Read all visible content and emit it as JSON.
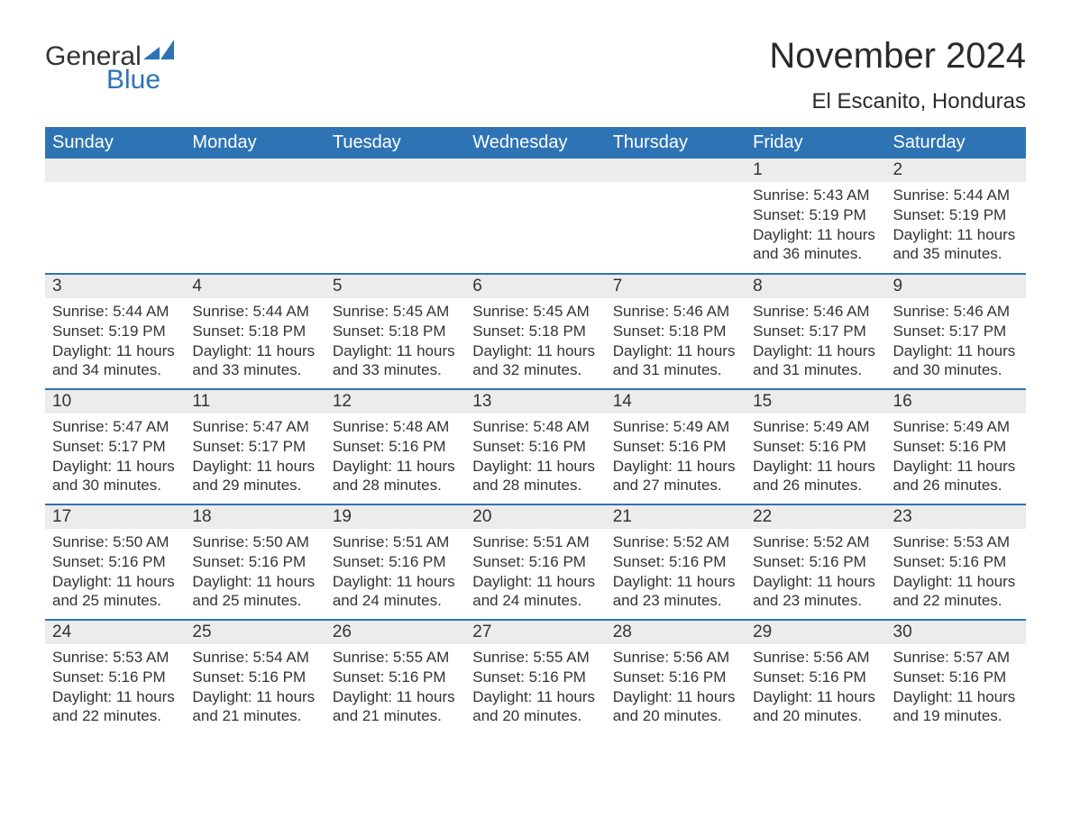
{
  "brand": {
    "part1": "General",
    "part2": "Blue",
    "accent_color": "#2e74b5"
  },
  "title": "November 2024",
  "location": "El Escanito, Honduras",
  "colors": {
    "header_bg": "#2e74b5",
    "header_text": "#ffffff",
    "daynum_bg": "#ececec",
    "row_border": "#2e74b5",
    "text": "#333333",
    "page_bg": "#ffffff"
  },
  "typography": {
    "title_fontsize": 40,
    "location_fontsize": 24,
    "header_fontsize": 20,
    "daynum_fontsize": 19,
    "body_fontsize": 17
  },
  "weekdays": [
    "Sunday",
    "Monday",
    "Tuesday",
    "Wednesday",
    "Thursday",
    "Friday",
    "Saturday"
  ],
  "weeks": [
    [
      null,
      null,
      null,
      null,
      null,
      {
        "n": "1",
        "sunrise": "Sunrise: 5:43 AM",
        "sunset": "Sunset: 5:19 PM",
        "day1": "Daylight: 11 hours",
        "day2": "and 36 minutes."
      },
      {
        "n": "2",
        "sunrise": "Sunrise: 5:44 AM",
        "sunset": "Sunset: 5:19 PM",
        "day1": "Daylight: 11 hours",
        "day2": "and 35 minutes."
      }
    ],
    [
      {
        "n": "3",
        "sunrise": "Sunrise: 5:44 AM",
        "sunset": "Sunset: 5:19 PM",
        "day1": "Daylight: 11 hours",
        "day2": "and 34 minutes."
      },
      {
        "n": "4",
        "sunrise": "Sunrise: 5:44 AM",
        "sunset": "Sunset: 5:18 PM",
        "day1": "Daylight: 11 hours",
        "day2": "and 33 minutes."
      },
      {
        "n": "5",
        "sunrise": "Sunrise: 5:45 AM",
        "sunset": "Sunset: 5:18 PM",
        "day1": "Daylight: 11 hours",
        "day2": "and 33 minutes."
      },
      {
        "n": "6",
        "sunrise": "Sunrise: 5:45 AM",
        "sunset": "Sunset: 5:18 PM",
        "day1": "Daylight: 11 hours",
        "day2": "and 32 minutes."
      },
      {
        "n": "7",
        "sunrise": "Sunrise: 5:46 AM",
        "sunset": "Sunset: 5:18 PM",
        "day1": "Daylight: 11 hours",
        "day2": "and 31 minutes."
      },
      {
        "n": "8",
        "sunrise": "Sunrise: 5:46 AM",
        "sunset": "Sunset: 5:17 PM",
        "day1": "Daylight: 11 hours",
        "day2": "and 31 minutes."
      },
      {
        "n": "9",
        "sunrise": "Sunrise: 5:46 AM",
        "sunset": "Sunset: 5:17 PM",
        "day1": "Daylight: 11 hours",
        "day2": "and 30 minutes."
      }
    ],
    [
      {
        "n": "10",
        "sunrise": "Sunrise: 5:47 AM",
        "sunset": "Sunset: 5:17 PM",
        "day1": "Daylight: 11 hours",
        "day2": "and 30 minutes."
      },
      {
        "n": "11",
        "sunrise": "Sunrise: 5:47 AM",
        "sunset": "Sunset: 5:17 PM",
        "day1": "Daylight: 11 hours",
        "day2": "and 29 minutes."
      },
      {
        "n": "12",
        "sunrise": "Sunrise: 5:48 AM",
        "sunset": "Sunset: 5:16 PM",
        "day1": "Daylight: 11 hours",
        "day2": "and 28 minutes."
      },
      {
        "n": "13",
        "sunrise": "Sunrise: 5:48 AM",
        "sunset": "Sunset: 5:16 PM",
        "day1": "Daylight: 11 hours",
        "day2": "and 28 minutes."
      },
      {
        "n": "14",
        "sunrise": "Sunrise: 5:49 AM",
        "sunset": "Sunset: 5:16 PM",
        "day1": "Daylight: 11 hours",
        "day2": "and 27 minutes."
      },
      {
        "n": "15",
        "sunrise": "Sunrise: 5:49 AM",
        "sunset": "Sunset: 5:16 PM",
        "day1": "Daylight: 11 hours",
        "day2": "and 26 minutes."
      },
      {
        "n": "16",
        "sunrise": "Sunrise: 5:49 AM",
        "sunset": "Sunset: 5:16 PM",
        "day1": "Daylight: 11 hours",
        "day2": "and 26 minutes."
      }
    ],
    [
      {
        "n": "17",
        "sunrise": "Sunrise: 5:50 AM",
        "sunset": "Sunset: 5:16 PM",
        "day1": "Daylight: 11 hours",
        "day2": "and 25 minutes."
      },
      {
        "n": "18",
        "sunrise": "Sunrise: 5:50 AM",
        "sunset": "Sunset: 5:16 PM",
        "day1": "Daylight: 11 hours",
        "day2": "and 25 minutes."
      },
      {
        "n": "19",
        "sunrise": "Sunrise: 5:51 AM",
        "sunset": "Sunset: 5:16 PM",
        "day1": "Daylight: 11 hours",
        "day2": "and 24 minutes."
      },
      {
        "n": "20",
        "sunrise": "Sunrise: 5:51 AM",
        "sunset": "Sunset: 5:16 PM",
        "day1": "Daylight: 11 hours",
        "day2": "and 24 minutes."
      },
      {
        "n": "21",
        "sunrise": "Sunrise: 5:52 AM",
        "sunset": "Sunset: 5:16 PM",
        "day1": "Daylight: 11 hours",
        "day2": "and 23 minutes."
      },
      {
        "n": "22",
        "sunrise": "Sunrise: 5:52 AM",
        "sunset": "Sunset: 5:16 PM",
        "day1": "Daylight: 11 hours",
        "day2": "and 23 minutes."
      },
      {
        "n": "23",
        "sunrise": "Sunrise: 5:53 AM",
        "sunset": "Sunset: 5:16 PM",
        "day1": "Daylight: 11 hours",
        "day2": "and 22 minutes."
      }
    ],
    [
      {
        "n": "24",
        "sunrise": "Sunrise: 5:53 AM",
        "sunset": "Sunset: 5:16 PM",
        "day1": "Daylight: 11 hours",
        "day2": "and 22 minutes."
      },
      {
        "n": "25",
        "sunrise": "Sunrise: 5:54 AM",
        "sunset": "Sunset: 5:16 PM",
        "day1": "Daylight: 11 hours",
        "day2": "and 21 minutes."
      },
      {
        "n": "26",
        "sunrise": "Sunrise: 5:55 AM",
        "sunset": "Sunset: 5:16 PM",
        "day1": "Daylight: 11 hours",
        "day2": "and 21 minutes."
      },
      {
        "n": "27",
        "sunrise": "Sunrise: 5:55 AM",
        "sunset": "Sunset: 5:16 PM",
        "day1": "Daylight: 11 hours",
        "day2": "and 20 minutes."
      },
      {
        "n": "28",
        "sunrise": "Sunrise: 5:56 AM",
        "sunset": "Sunset: 5:16 PM",
        "day1": "Daylight: 11 hours",
        "day2": "and 20 minutes."
      },
      {
        "n": "29",
        "sunrise": "Sunrise: 5:56 AM",
        "sunset": "Sunset: 5:16 PM",
        "day1": "Daylight: 11 hours",
        "day2": "and 20 minutes."
      },
      {
        "n": "30",
        "sunrise": "Sunrise: 5:57 AM",
        "sunset": "Sunset: 5:16 PM",
        "day1": "Daylight: 11 hours",
        "day2": "and 19 minutes."
      }
    ]
  ]
}
